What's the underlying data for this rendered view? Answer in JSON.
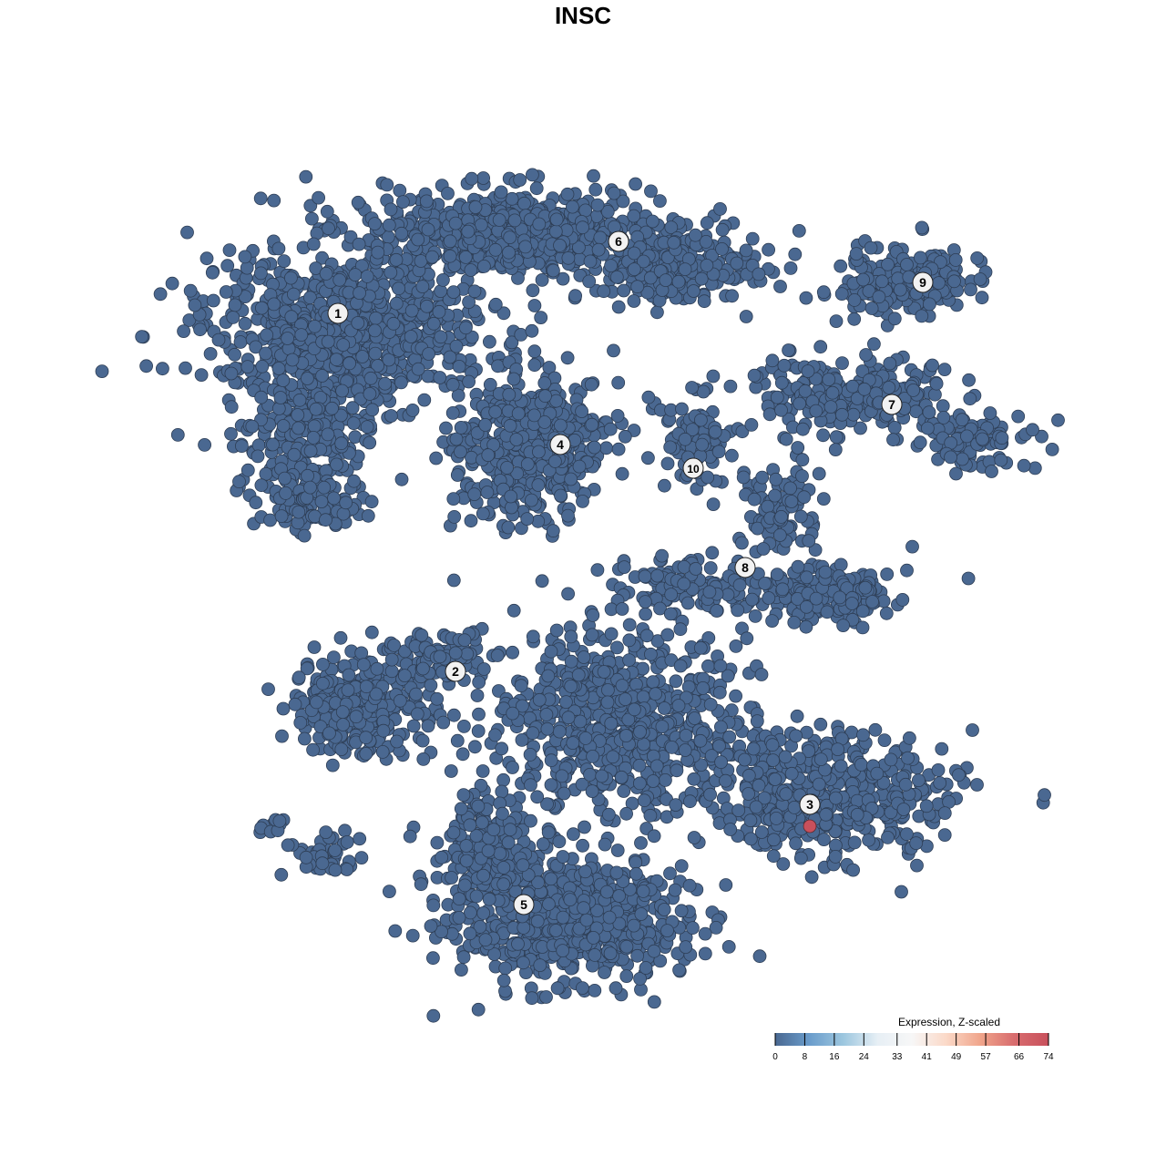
{
  "chart_data": {
    "type": "scatter",
    "title": "INSC",
    "xlabel": "",
    "ylabel": "",
    "grid": false,
    "point_color_default": "#4a6891",
    "highlight_point": {
      "cluster": "3",
      "value": 74,
      "color": "#c8505c"
    },
    "cluster_labels": [
      "1",
      "2",
      "3",
      "4",
      "5",
      "6",
      "7",
      "8",
      "9",
      "10"
    ],
    "legend": {
      "title": "Expression, Z-scaled",
      "placement": "bottom-right",
      "ticks": [
        "0",
        "8",
        "16",
        "24",
        "33",
        "41",
        "49",
        "57",
        "66",
        "74"
      ],
      "range": [
        0,
        74
      ],
      "colors": [
        "#4a6891",
        "#6a9ccb",
        "#9dc7df",
        "#e7eff5",
        "#f7f7f7",
        "#fbd9c8",
        "#f0a58b",
        "#d86c6e",
        "#c8505c"
      ]
    }
  }
}
